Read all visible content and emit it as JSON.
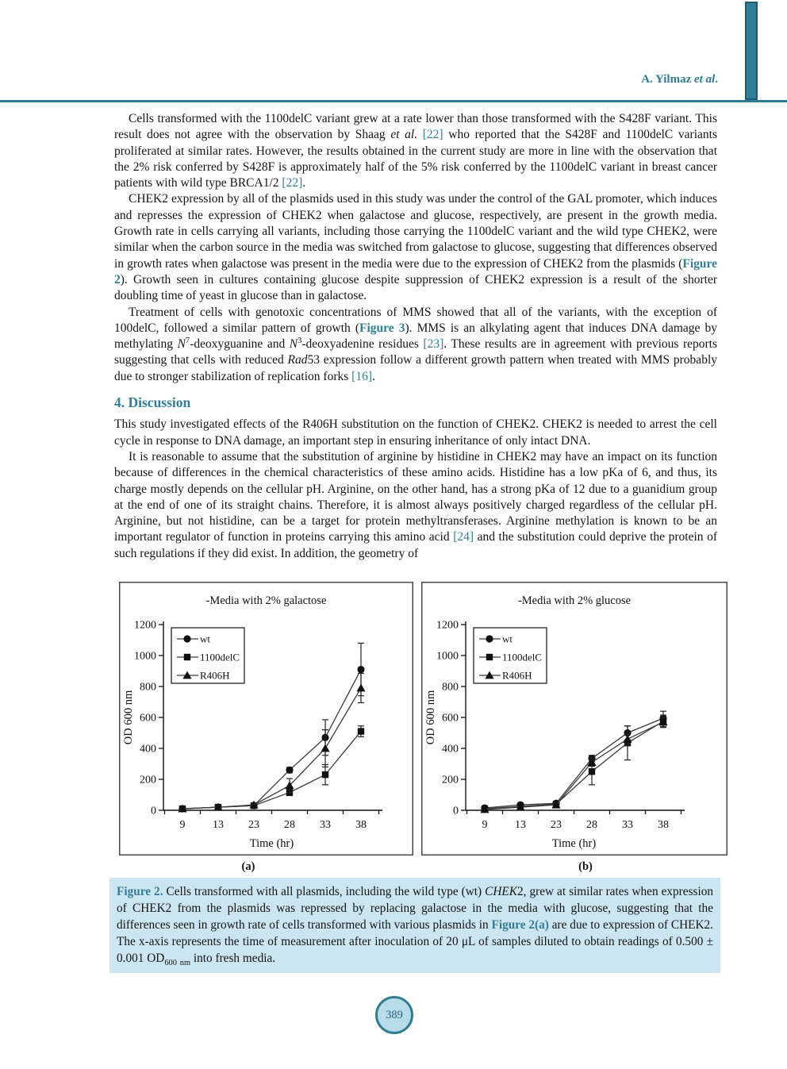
{
  "colors": {
    "accent": "#2e7d95",
    "accent_text": "#337e97",
    "caption_bg": "#cbe6f0",
    "badge_bg": "#b9dcea",
    "ink": "#141414"
  },
  "header": {
    "running_head": [
      {
        "t": "A. Yilmaz ",
        "s": "b"
      },
      {
        "t": "et al",
        "s": "b i"
      },
      {
        "t": ".",
        "s": "b"
      }
    ]
  },
  "body": {
    "paragraphs": [
      [
        {
          "t": "Cells transformed with the 1100delC variant grew at a rate lower than those transformed with the S428F variant. This result does not agree with the observation by Shaag ",
          "s": ""
        },
        {
          "t": "et al.",
          "s": "i"
        },
        {
          "t": " ",
          "s": ""
        },
        {
          "t": "[22]",
          "s": "teal"
        },
        {
          "t": " who reported that the S428F and 1100delC variants proliferated at similar rates. However, the results obtained in the current study are more in line with the observation that the 2% risk conferred by S428F is approximately half of the 5% risk conferred by the 1100delC variant in breast cancer patients with wild type BRCA1/2 ",
          "s": ""
        },
        {
          "t": "[22]",
          "s": "teal"
        },
        {
          "t": ".",
          "s": ""
        }
      ],
      [
        {
          "t": "CHEK2 expression by all of the plasmids used in this study was under the control of the GAL promoter, which induces and represses the expression of CHEK2 when galactose and glucose, respectively, are present in the growth media. Growth rate in cells carrying all variants, including those carrying the 1100delC variant and the wild type CHEK2, were similar when the carbon source in the media was switched from galactose to glucose, suggesting that differences observed in growth rates when galactose was present in the media were due to the expression of CHEK2 from the plasmids (",
          "s": ""
        },
        {
          "t": "Figure 2",
          "s": "teal b"
        },
        {
          "t": "). Growth seen in cultures containing glucose despite suppression of CHEK2 expression is a result of the shorter doubling time of yeast in glucose than in galactose.",
          "s": ""
        }
      ],
      [
        {
          "t": "Treatment of cells with genotoxic concentrations of MMS showed that all of the variants, with the exception of 100delC, followed a similar pattern of growth (",
          "s": ""
        },
        {
          "t": "Figure 3",
          "s": "teal b"
        },
        {
          "t": "). MMS is an alkylating agent that induces DNA damage by methylating ",
          "s": ""
        },
        {
          "t": "N",
          "s": "i"
        },
        {
          "t": "7",
          "s": "sup"
        },
        {
          "t": "-deoxyguanine and ",
          "s": ""
        },
        {
          "t": "N",
          "s": "i"
        },
        {
          "t": "3",
          "s": "sup"
        },
        {
          "t": "-deoxyadenine residues ",
          "s": ""
        },
        {
          "t": "[23]",
          "s": "teal"
        },
        {
          "t": ". These results are in agreement with previous reports suggesting that cells with reduced ",
          "s": ""
        },
        {
          "t": "Rad",
          "s": "i"
        },
        {
          "t": "53 expression follow a different growth pattern when treated with MMS probably due to stronger stabilization of replication forks ",
          "s": ""
        },
        {
          "t": "[16]",
          "s": "teal"
        },
        {
          "t": ".",
          "s": ""
        }
      ],
      [
        {
          "t": "This study investigated effects of the R406H substitution on the function of CHEK2. CHEK2 is needed to arrest the cell cycle in response to DNA damage, an important step in ensuring inheritance of only intact DNA.",
          "s": ""
        }
      ],
      [
        {
          "t": "It is reasonable to assume that the substitution of arginine by histidine in CHEK2 may have an impact on its function because of differences in the chemical characteristics of these amino acids. Histidine has a low pKa of 6, and thus, its charge mostly depends on the cellular pH. Arginine, on the other hand, has a strong pKa of 12 due to a guanidium group at the end of one of its straight chains. Therefore, it is almost always positively charged regardless of the cellular pH. Arginine, but not histidine, can be a target for protein methyltransferases. Arginine methylation is known to be an important regulator of function in proteins carrying this amino acid ",
          "s": ""
        },
        {
          "t": "[24]",
          "s": "teal"
        },
        {
          "t": " and the substitution could deprive the protein of such regulations if they did exist. In addition, the geometry of",
          "s": ""
        }
      ]
    ],
    "section_heading": "4. Discussion"
  },
  "chart_data": [
    {
      "type": "line",
      "title": "-Media with 2% galactose",
      "xlabel": "Time (hr)",
      "ylabel": "OD 600 nm",
      "categories": [
        "9",
        "13",
        "23",
        "28",
        "33",
        "38"
      ],
      "ylim": [
        0,
        1200
      ],
      "ytick_step": 200,
      "grid": false,
      "legend_position": "upper-left",
      "legend": [
        "wt",
        "1100delC",
        "R406H"
      ],
      "series": [
        {
          "name": "wt",
          "marker": "circle",
          "values": [
            10,
            20,
            30,
            260,
            470,
            910
          ],
          "errors": [
            0,
            0,
            0,
            18,
            115,
            170
          ]
        },
        {
          "name": "1100delC",
          "marker": "square",
          "values": [
            10,
            20,
            30,
            115,
            230,
            510
          ],
          "errors": [
            0,
            0,
            0,
            20,
            65,
            35
          ]
        },
        {
          "name": "R406H",
          "marker": "triangle",
          "values": [
            10,
            20,
            35,
            160,
            400,
            790
          ],
          "errors": [
            0,
            0,
            0,
            45,
            120,
            95
          ]
        }
      ]
    },
    {
      "type": "line",
      "title": "-Media with 2% glucose",
      "xlabel": "Time (hr)",
      "ylabel": "OD 600 nm",
      "categories": [
        "9",
        "13",
        "23",
        "28",
        "33",
        "38"
      ],
      "ylim": [
        0,
        1200
      ],
      "ytick_step": 200,
      "grid": false,
      "legend_position": "upper-left",
      "legend": [
        "wt",
        "1100delC",
        "R406H"
      ],
      "series": [
        {
          "name": "wt",
          "marker": "circle",
          "values": [
            15,
            35,
            45,
            335,
            500,
            595
          ],
          "errors": [
            5,
            5,
            12,
            20,
            45,
            45
          ]
        },
        {
          "name": "1100delC",
          "marker": "square",
          "values": [
            10,
            25,
            40,
            250,
            435,
            575
          ],
          "errors": [
            5,
            5,
            8,
            85,
            110,
            40
          ]
        },
        {
          "name": "R406H",
          "marker": "triangle",
          "values": [
            5,
            20,
            35,
            310,
            460,
            570
          ],
          "errors": [
            5,
            5,
            8,
            25,
            30,
            30
          ]
        }
      ]
    }
  ],
  "figure": {
    "sublabels": [
      "(a)",
      "(b)"
    ],
    "caption": [
      {
        "t": "Figure 2.",
        "s": "teal b"
      },
      {
        "t": " Cells transformed with all plasmids, including the wild type (wt) ",
        "s": ""
      },
      {
        "t": "CHEK",
        "s": "i"
      },
      {
        "t": "2, grew at similar rates when expression of CHEK2 from the plasmids was repressed by replacing galactose in the media with glucose, suggesting that the differences seen in growth rate of cells transformed with various plasmids in ",
        "s": ""
      },
      {
        "t": "Figure 2(a)",
        "s": "teal b"
      },
      {
        "t": " are due to expression of CHEK2. The x-axis represents the time of measurement after inoculation of 20 μL of samples diluted to obtain readings of 0.500 ± 0.001 OD",
        "s": ""
      },
      {
        "t": "600",
        "s": "sub"
      },
      {
        "t": " ",
        "s": ""
      },
      {
        "t": "nm",
        "s": "sub"
      },
      {
        "t": " into fresh media.",
        "s": ""
      }
    ]
  },
  "footer": {
    "page_number": "389"
  }
}
